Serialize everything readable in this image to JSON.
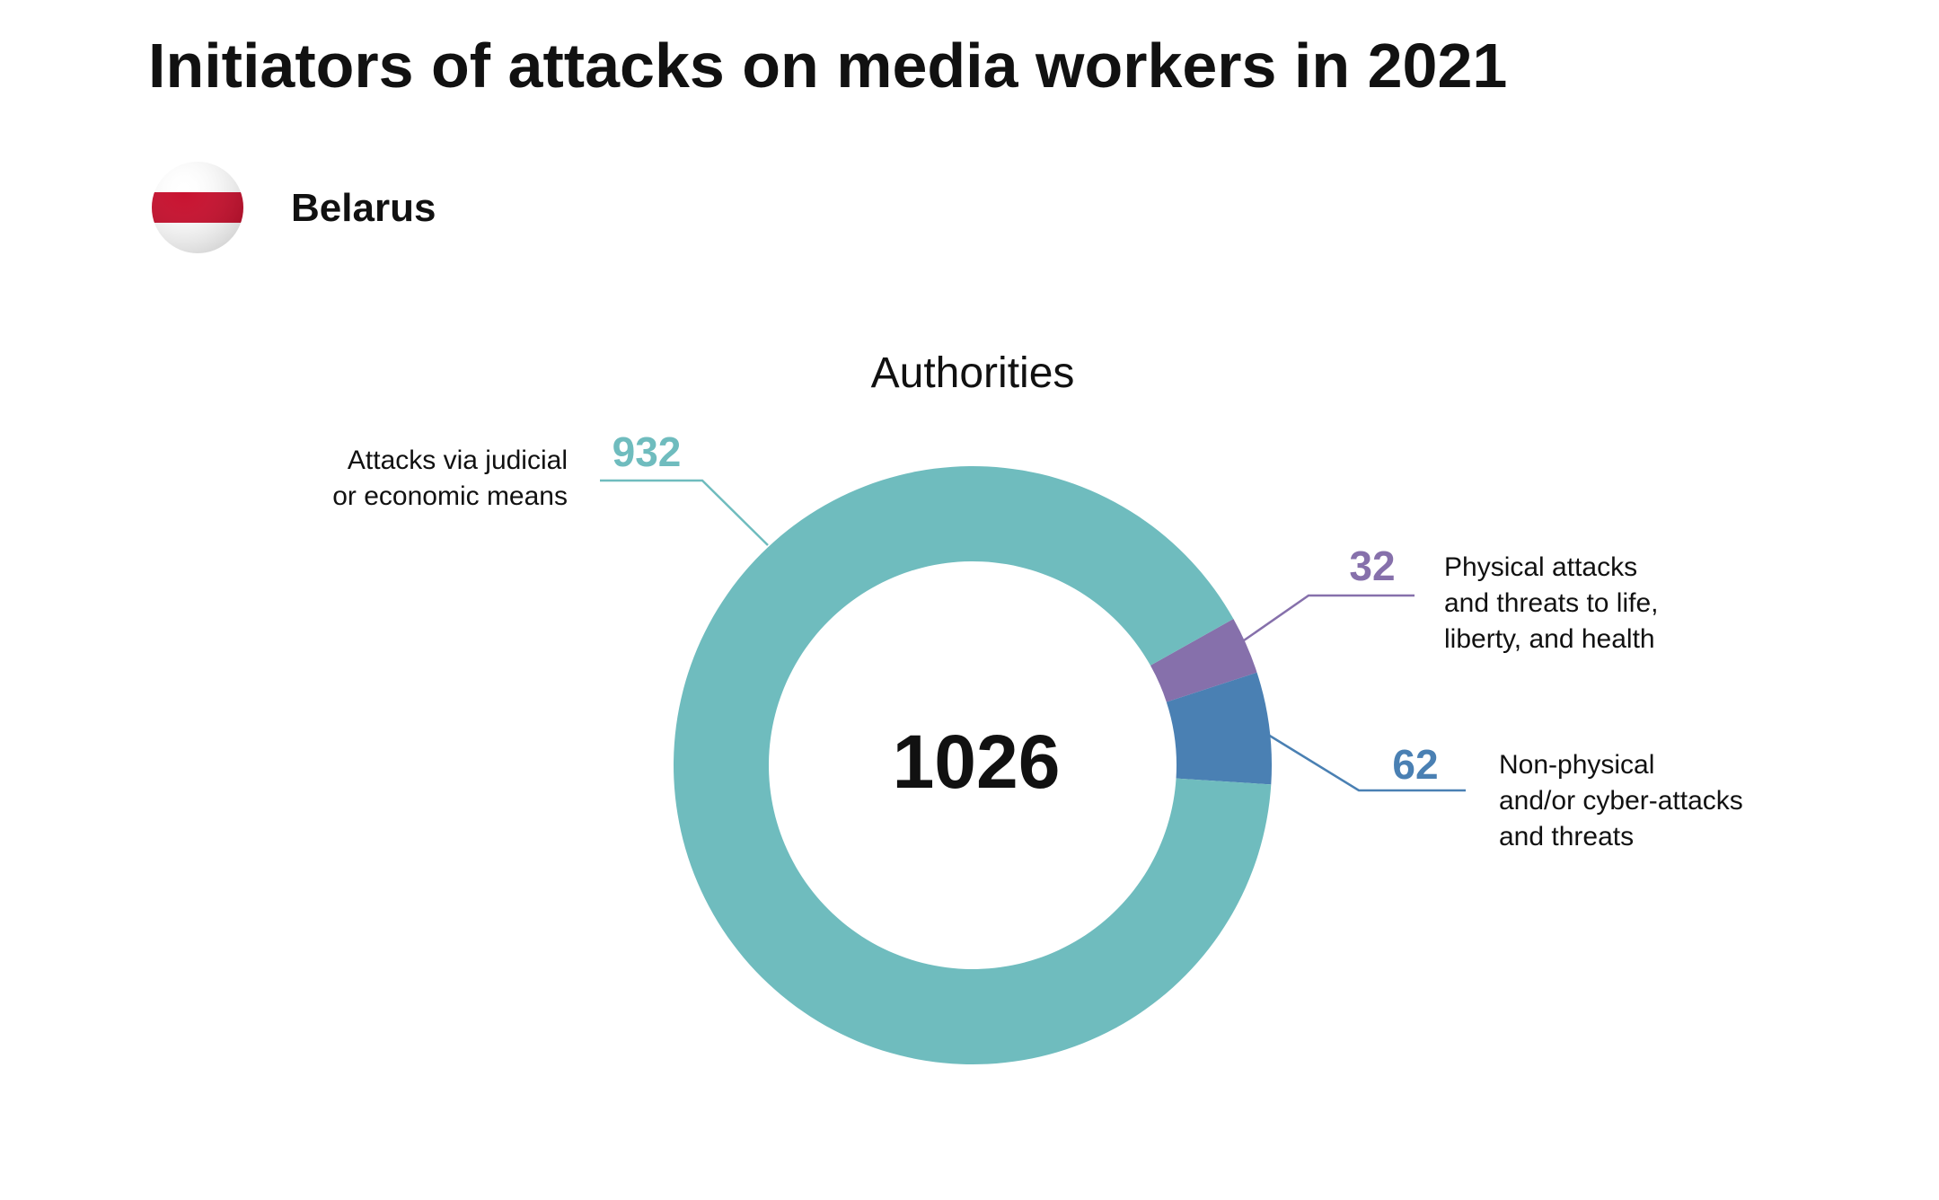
{
  "header": {
    "title": "Initiators of attacks on media workers in 2021",
    "country": "Belarus"
  },
  "flag": {
    "colors": [
      "#ffffff",
      "#c8102e",
      "#ffffff"
    ]
  },
  "chart_data": {
    "type": "pie",
    "title": "Authorities",
    "total": "1026",
    "series": [
      {
        "value": 932,
        "value_label": "932",
        "label_lines": [
          "Attacks via judicial",
          "or economic means"
        ],
        "color": "#6fbcbe"
      },
      {
        "value": 32,
        "value_label": "32",
        "label_lines": [
          "Physical attacks",
          "and threats to life,",
          "liberty, and health"
        ],
        "color": "#8670ab"
      },
      {
        "value": 62,
        "value_label": "62",
        "label_lines": [
          "Non-physical",
          "and/or cyber-attacks",
          "and threats"
        ],
        "color": "#4a80b3"
      }
    ]
  }
}
